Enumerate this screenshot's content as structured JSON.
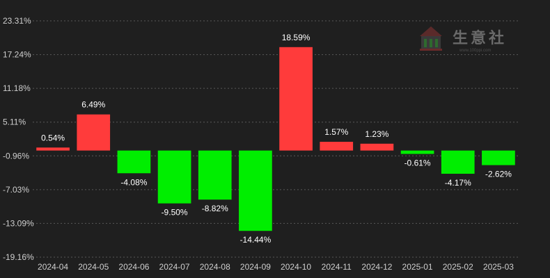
{
  "chart_data": {
    "type": "bar",
    "categories": [
      "2024-04",
      "2024-05",
      "2024-06",
      "2024-07",
      "2024-08",
      "2024-09",
      "2024-10",
      "2024-11",
      "2024-12",
      "2025-01",
      "2025-02",
      "2025-03"
    ],
    "values": [
      0.54,
      6.49,
      -4.08,
      -9.5,
      -8.82,
      -14.44,
      18.59,
      1.57,
      1.23,
      -0.61,
      -4.17,
      -2.62
    ],
    "data_labels": [
      "0.54%",
      "6.49%",
      "-4.08%",
      "-9.50%",
      "-8.82%",
      "-14.44%",
      "18.59%",
      "1.57%",
      "1.23%",
      "-0.61%",
      "-4.17%",
      "-2.62%"
    ],
    "y_ticks": [
      23.31,
      17.24,
      11.18,
      5.11,
      -0.96,
      -7.03,
      -13.09,
      -19.16
    ],
    "y_tick_labels": [
      "23.31%",
      "17.24%",
      "11.18%",
      "5.11%",
      "-0.96%",
      "-7.03%",
      "-13.09%",
      "-19.16%"
    ],
    "ylim": [
      -19.16,
      23.31
    ],
    "grid": true,
    "colors": {
      "positive": "#ff3b3b",
      "negative": "#00ee00",
      "background": "#1f1f1f",
      "grid": "#5a5a5a"
    },
    "title": "",
    "xlabel": "",
    "ylabel": ""
  },
  "watermark": {
    "text": "生意社",
    "subtext": "www.100ppi.com"
  }
}
